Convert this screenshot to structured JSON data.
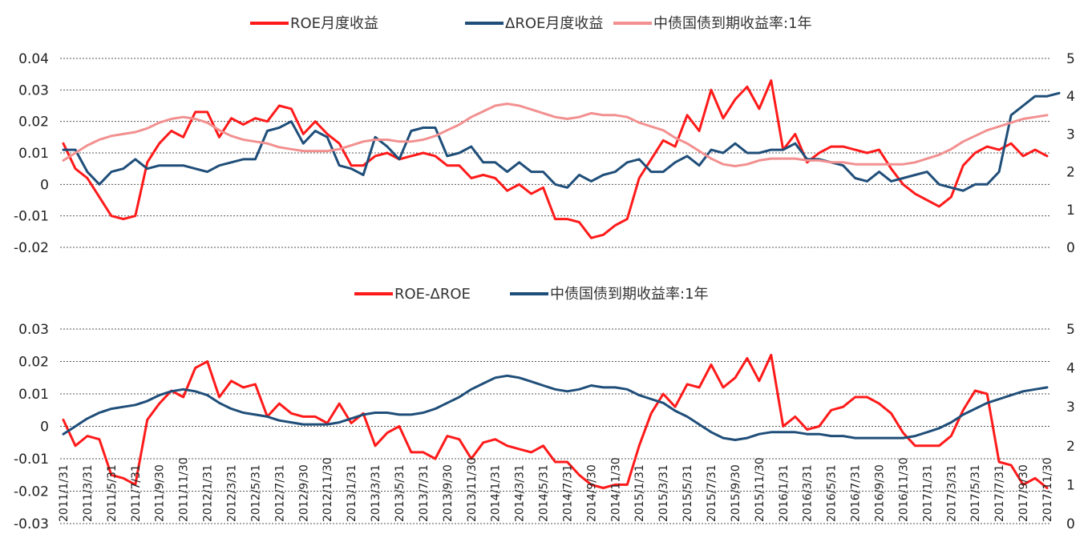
{
  "chart_data": [
    {
      "type": "line",
      "id": "top",
      "legend": [
        "ROE月度收益",
        "ΔROE月度收益",
        "中债国债到期收益率:1年"
      ],
      "legend_position": "top",
      "colors": [
        "#ff1a1a",
        "#1f4e79",
        "#f29090"
      ],
      "y_left": {
        "ticks": [
          "0.04",
          "0.03",
          "0.02",
          "0.01",
          "0",
          "-0.01",
          "-0.02"
        ],
        "range": [
          -0.02,
          0.04
        ]
      },
      "y_right": {
        "ticks": [
          "5",
          "4",
          "3",
          "2",
          "1",
          "0"
        ],
        "range": [
          0,
          5
        ]
      },
      "grid": true,
      "series": [
        {
          "name": "ROE月度收益",
          "axis": "left",
          "values": [
            0.013,
            0.005,
            0.002,
            -0.004,
            -0.01,
            -0.011,
            -0.01,
            0.007,
            0.013,
            0.017,
            0.015,
            0.023,
            0.023,
            0.015,
            0.021,
            0.019,
            0.021,
            0.02,
            0.025,
            0.024,
            0.016,
            0.02,
            0.016,
            0.013,
            0.006,
            0.006,
            0.009,
            0.01,
            0.008,
            0.009,
            0.01,
            0.009,
            0.006,
            0.006,
            0.002,
            0.003,
            0.002,
            -0.002,
            0.0,
            -0.003,
            -0.001,
            -0.011,
            -0.011,
            -0.012,
            -0.017,
            -0.016,
            -0.013,
            -0.011,
            0.002,
            0.008,
            0.014,
            0.012,
            0.022,
            0.017,
            0.03,
            0.021,
            0.027,
            0.031,
            0.024,
            0.033,
            0.011,
            0.016,
            0.007,
            0.01,
            0.012,
            0.012,
            0.011,
            0.01,
            0.011,
            0.005,
            0.0,
            -0.003,
            -0.005,
            -0.007,
            -0.004,
            0.006,
            0.01,
            0.012,
            0.011,
            0.013,
            0.009,
            0.011,
            0.009
          ]
        },
        {
          "name": "ΔROE月度收益",
          "axis": "left",
          "values": [
            0.011,
            0.011,
            0.004,
            0.0,
            0.004,
            0.005,
            0.008,
            0.005,
            0.006,
            0.006,
            0.006,
            0.005,
            0.004,
            0.006,
            0.007,
            0.008,
            0.008,
            0.017,
            0.018,
            0.02,
            0.013,
            0.017,
            0.015,
            0.006,
            0.005,
            0.003,
            0.015,
            0.012,
            0.008,
            0.017,
            0.018,
            0.018,
            0.009,
            0.01,
            0.012,
            0.007,
            0.007,
            0.004,
            0.007,
            0.004,
            0.004,
            0.0,
            -0.001,
            0.003,
            0.001,
            0.003,
            0.004,
            0.007,
            0.008,
            0.004,
            0.004,
            0.007,
            0.009,
            0.006,
            0.011,
            0.01,
            0.013,
            0.01,
            0.01,
            0.011,
            0.011,
            0.013,
            0.008,
            0.008,
            0.007,
            0.006,
            0.002,
            0.001,
            0.004,
            0.001,
            0.002,
            0.003,
            0.004,
            0.0,
            -0.001,
            -0.002,
            0.0,
            0.0,
            0.004,
            0.022,
            0.025,
            0.028,
            0.028,
            0.029
          ]
        },
        {
          "name": "中债国债到期收益率:1年",
          "axis": "right",
          "values": [
            2.3,
            2.5,
            2.7,
            2.85,
            2.95,
            3.0,
            3.05,
            3.15,
            3.3,
            3.4,
            3.45,
            3.4,
            3.3,
            3.1,
            2.95,
            2.85,
            2.8,
            2.75,
            2.65,
            2.6,
            2.55,
            2.55,
            2.55,
            2.6,
            2.7,
            2.8,
            2.85,
            2.85,
            2.8,
            2.8,
            2.85,
            2.95,
            3.1,
            3.25,
            3.45,
            3.6,
            3.75,
            3.8,
            3.75,
            3.65,
            3.55,
            3.45,
            3.4,
            3.45,
            3.55,
            3.5,
            3.5,
            3.45,
            3.3,
            3.2,
            3.1,
            2.9,
            2.75,
            2.55,
            2.35,
            2.2,
            2.15,
            2.2,
            2.3,
            2.35,
            2.35,
            2.35,
            2.3,
            2.3,
            2.25,
            2.25,
            2.2,
            2.2,
            2.2,
            2.2,
            2.2,
            2.25,
            2.35,
            2.45,
            2.6,
            2.8,
            2.95,
            3.1,
            3.2,
            3.3,
            3.4,
            3.45,
            3.5
          ]
        }
      ]
    },
    {
      "type": "line",
      "id": "bottom",
      "legend": [
        "ROE-ΔROE",
        "中债国债到期收益率:1年"
      ],
      "legend_position": "top",
      "colors": [
        "#ff1a1a",
        "#1f4e79"
      ],
      "y_left": {
        "ticks": [
          "0.03",
          "0.02",
          "0.01",
          "0",
          "-0.01",
          "-0.02",
          "-0.03"
        ],
        "range": [
          -0.03,
          0.03
        ]
      },
      "y_right": {
        "ticks": [
          "5",
          "4",
          "3",
          "2",
          "1",
          "0"
        ],
        "range": [
          0,
          5
        ]
      },
      "grid": true,
      "x_tick_labels": [
        "2011/1/31",
        "2011/3/31",
        "2011/5/31",
        "2011/7/31",
        "2011/9/30",
        "2011/11/30",
        "2012/1/31",
        "2012/3/31",
        "2012/5/31",
        "2012/7/31",
        "2012/9/30",
        "2012/11/30",
        "2013/1/31",
        "2013/3/31",
        "2013/5/31",
        "2013/7/31",
        "2013/9/30",
        "2013/11/30",
        "2014/1/31",
        "2014/3/31",
        "2014/5/31",
        "2014/7/31",
        "2014/9/30",
        "2014/11/30",
        "2015/1/31",
        "2015/3/31",
        "2015/5/31",
        "2015/7/31",
        "2015/9/30",
        "2015/11/30",
        "2016/1/31",
        "2016/3/31",
        "2016/5/31",
        "2016/7/31",
        "2016/9/30",
        "2016/11/30",
        "2017/1/31",
        "2017/3/31",
        "2017/5/31",
        "2017/7/31",
        "2017/9/30",
        "2017/11/30"
      ],
      "series": [
        {
          "name": "ROE-ΔROE",
          "axis": "left",
          "values": [
            0.002,
            -0.006,
            -0.003,
            -0.004,
            -0.015,
            -0.016,
            -0.018,
            0.002,
            0.007,
            0.011,
            0.009,
            0.018,
            0.02,
            0.009,
            0.014,
            0.012,
            0.013,
            0.003,
            0.007,
            0.004,
            0.003,
            0.003,
            0.001,
            0.007,
            0.001,
            0.004,
            -0.006,
            -0.002,
            0.0,
            -0.008,
            -0.008,
            -0.01,
            -0.003,
            -0.004,
            -0.01,
            -0.005,
            -0.004,
            -0.006,
            -0.007,
            -0.008,
            -0.006,
            -0.011,
            -0.011,
            -0.015,
            -0.018,
            -0.019,
            -0.018,
            -0.018,
            -0.006,
            0.004,
            0.01,
            0.006,
            0.013,
            0.012,
            0.019,
            0.012,
            0.015,
            0.021,
            0.014,
            0.022,
            0.0,
            0.003,
            -0.001,
            0.0,
            0.005,
            0.006,
            0.009,
            0.009,
            0.007,
            0.004,
            -0.002,
            -0.006,
            -0.006,
            -0.006,
            -0.003,
            0.005,
            0.011,
            0.01,
            -0.011,
            -0.012,
            -0.018,
            -0.016,
            -0.019
          ]
        },
        {
          "name": "中债国债到期收益率:1年",
          "axis": "right",
          "values": [
            2.3,
            2.5,
            2.7,
            2.85,
            2.95,
            3.0,
            3.05,
            3.15,
            3.3,
            3.4,
            3.45,
            3.4,
            3.3,
            3.1,
            2.95,
            2.85,
            2.8,
            2.75,
            2.65,
            2.6,
            2.55,
            2.55,
            2.55,
            2.6,
            2.7,
            2.8,
            2.85,
            2.85,
            2.8,
            2.8,
            2.85,
            2.95,
            3.1,
            3.25,
            3.45,
            3.6,
            3.75,
            3.8,
            3.75,
            3.65,
            3.55,
            3.45,
            3.4,
            3.45,
            3.55,
            3.5,
            3.5,
            3.45,
            3.3,
            3.2,
            3.1,
            2.9,
            2.75,
            2.55,
            2.35,
            2.2,
            2.15,
            2.2,
            2.3,
            2.35,
            2.35,
            2.35,
            2.3,
            2.3,
            2.25,
            2.25,
            2.2,
            2.2,
            2.2,
            2.2,
            2.2,
            2.25,
            2.35,
            2.45,
            2.6,
            2.8,
            2.95,
            3.1,
            3.2,
            3.3,
            3.4,
            3.45,
            3.5
          ]
        }
      ]
    }
  ]
}
